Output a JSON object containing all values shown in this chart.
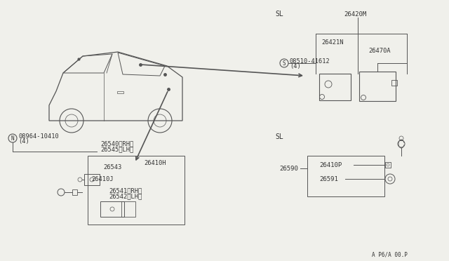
{
  "bg_color": "#f0f0eb",
  "line_color": "#555555",
  "text_color": "#333333",
  "watermark": "A P6/A 00.P",
  "sl_top": "SL",
  "sl_bottom": "SL",
  "p26420M": "26420M",
  "p26421N": "26421N",
  "p26470A": "26470A",
  "p08510": "08510-41612",
  "p08510_qty": "(4)",
  "p08964": "08964-10410",
  "p08964_qty": "(4)",
  "p26540": "26540〈RH〉",
  "p26545": "26545〈LH〉",
  "p26543": "26543",
  "p26410H": "26410H",
  "p26410J": "26410J",
  "p26541": "26541〈RH〉",
  "p26542": "26542〈LH〉",
  "p26590": "26590",
  "p26410P": "26410P",
  "p26591": "26591"
}
